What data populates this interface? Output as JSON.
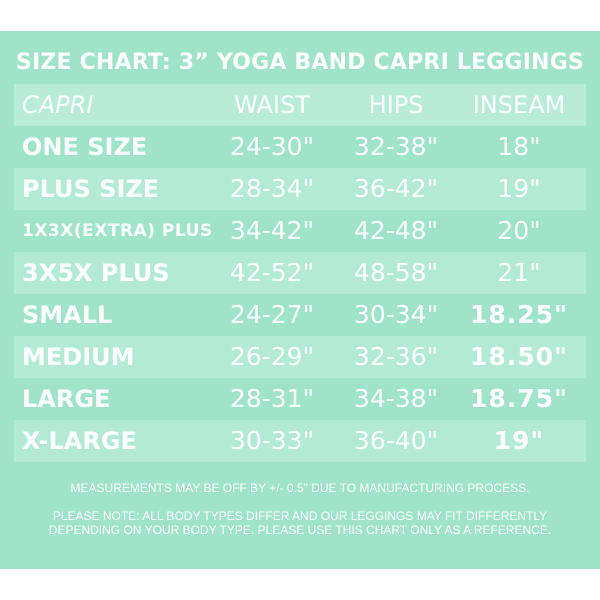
{
  "title": "SIZE CHART: 3” YOGA BAND CAPRI LEGGINGS",
  "colors": {
    "background": "#9fe3c9",
    "row_light": "#b2ead6",
    "text": "#ffffff"
  },
  "header": {
    "name": "CAPRI",
    "waist": "WAIST",
    "hips": "HIPS",
    "inseam": "INSEAM"
  },
  "rows": [
    {
      "name": "ONE SIZE",
      "waist": "24-30\"",
      "hips": "32-38\"",
      "inseam": "18\""
    },
    {
      "name": "PLUS SIZE",
      "waist": "28-34\"",
      "hips": "36-42\"",
      "inseam": "19\""
    },
    {
      "name": "1X3X(EXTRA) PLUS",
      "waist": "34-42\"",
      "hips": "42-48\"",
      "inseam": "20\""
    },
    {
      "name": "3X5X PLUS",
      "waist": "42-52\"",
      "hips": "48-58\"",
      "inseam": "21\""
    },
    {
      "name": "SMALL",
      "waist": "24-27\"",
      "hips": "30-34\"",
      "inseam": "18.25\""
    },
    {
      "name": "MEDIUM",
      "waist": "26-29\"",
      "hips": "32-36\"",
      "inseam": "18.50\""
    },
    {
      "name": "LARGE",
      "waist": "28-31\"",
      "hips": "34-38\"",
      "inseam": "18.75\""
    },
    {
      "name": "X-LARGE",
      "waist": "30-33\"",
      "hips": "36-40\"",
      "inseam": "19\""
    }
  ],
  "notes": {
    "measurement": "MEASUREMENTS MAY BE OFF BY +/- 0.5\" DUE TO MANUFACTURING PROCESS.",
    "disclaimer": "PLEASE NOTE: ALL BODY TYPES DIFFER AND OUR LEGGINGS MAY FIT DIFFERENTLY DEPENDING ON YOUR BODY TYPE. PLEASE USE THIS CHART ONLY AS A REFERENCE."
  }
}
